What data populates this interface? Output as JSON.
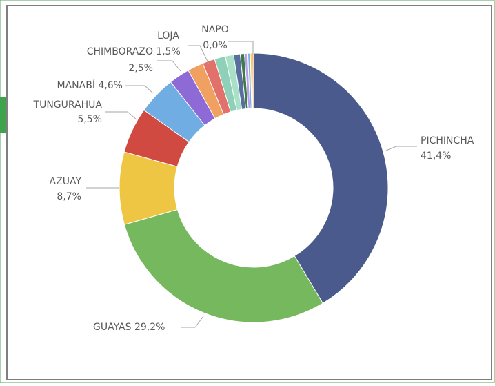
{
  "chart_data": {
    "type": "donut",
    "categories": [
      "PICHINCHA",
      "GUAYAS",
      "AZUAY",
      "TUNGURAHUA",
      "MANABÍ",
      "CHIMBORAZO",
      null,
      "LOJA",
      null,
      null,
      null,
      null,
      null,
      null,
      null,
      null,
      "NAPO"
    ],
    "values": [
      41.4,
      29.2,
      8.7,
      5.5,
      4.6,
      2.5,
      1.9,
      1.5,
      1.3,
      1.0,
      0.8,
      0.5,
      0.4,
      0.3,
      0.2,
      0.2,
      0.0
    ],
    "value_labels": [
      "41,4%",
      "29,2%",
      "8,7%",
      "5,5%",
      "4,6%",
      "2,5%",
      null,
      "1,5%",
      null,
      null,
      null,
      null,
      null,
      null,
      null,
      null,
      "0,0%"
    ],
    "colors": [
      "#4a5a8c",
      "#76b85e",
      "#eec643",
      "#d04a41",
      "#6fade3",
      "#8e6ad6",
      "#f0a060",
      "#e2706b",
      "#8fd0b8",
      "#a8e0c8",
      "#5a6e9e",
      "#3e7a4a",
      "#b8a0e8",
      "#7ab0e8",
      "#f4d060",
      "#f2b070",
      "#c08080"
    ]
  }
}
